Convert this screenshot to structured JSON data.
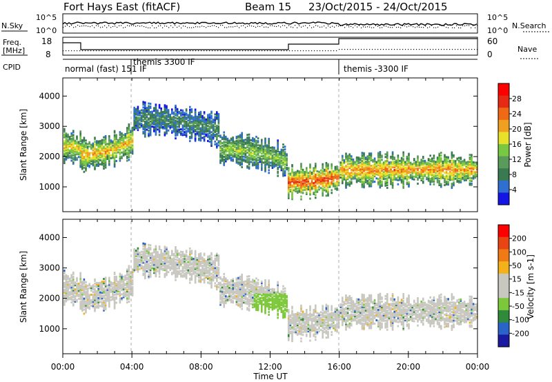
{
  "header": {
    "station": "Fort Hays East (fitACF)",
    "beam": "Beam 15",
    "date_range": "23/Oct/2015 - 24/Oct/2015"
  },
  "status_panels": {
    "nsky_label": "N.Sky",
    "nsky_ticks": [
      "10^5",
      "10^0"
    ],
    "nsearch_label": "N.Search",
    "nsearch_ticks": [
      "10^5",
      "10^0"
    ],
    "freq_label_line1": "Freq.",
    "freq_label_line2": "[MHz]",
    "freq_ticks": [
      "18",
      "8"
    ],
    "nave_label": "Nave",
    "nave_ticks": [
      "60",
      "0"
    ],
    "cpid_label": "CPID",
    "cpid_segments": [
      {
        "name": "normal (fast) 151 IF"
      },
      {
        "name": "themis 3300 IF"
      },
      {
        "name": "themis -3300 IF"
      }
    ]
  },
  "colors": {
    "power_scale": [
      "#1515e6",
      "#2e6fd0",
      "#3a7a50",
      "#5a9a5a",
      "#79c842",
      "#e8e02a",
      "#f0a020",
      "#ef6a14",
      "#e62a14",
      "#ff0000"
    ],
    "velocity_scale": [
      "#1a1aa0",
      "#2a64c8",
      "#2f8a3c",
      "#7cc83a",
      "#c8c8c0",
      "#c8c8c0",
      "#f3b21a",
      "#f07a14",
      "#e84414",
      "#ff0000"
    ]
  },
  "chart_data": [
    {
      "type": "heatmap",
      "title": "",
      "xlabel": "Time UT",
      "ylabel": "Slant Range [km]",
      "x_ticks": [
        "00:00",
        "04:00",
        "08:00",
        "12:00",
        "16:00",
        "20:00",
        "00:00"
      ],
      "x_range_hours": [
        0,
        24
      ],
      "y_ticks": [
        "1000",
        "2000",
        "3000",
        "4000"
      ],
      "y_range_km": [
        180,
        4600
      ],
      "colorbar_label": "Power [dB]",
      "colorbar_ticks": [
        "4",
        "8",
        "12",
        "16",
        "20",
        "24",
        "28"
      ],
      "colorbar_range": [
        0,
        30
      ],
      "backscatter_bands": [
        {
          "hour_start": 0,
          "hour_end": 1,
          "range_center_km": 2400,
          "value": 18
        },
        {
          "hour_start": 1,
          "hour_end": 4,
          "range_center_km": 2100,
          "value": 20
        },
        {
          "hour_start": 4,
          "hour_end": 9,
          "range_center_km": 3300,
          "value": 8
        },
        {
          "hour_start": 9,
          "hour_end": 13,
          "range_center_km": 2300,
          "value": 14
        },
        {
          "hour_start": 13,
          "hour_end": 16,
          "range_center_km": 1200,
          "value": 26
        },
        {
          "hour_start": 16,
          "hour_end": 24,
          "range_center_km": 1600,
          "value": 22
        }
      ]
    },
    {
      "type": "heatmap",
      "title": "",
      "xlabel": "Time UT",
      "ylabel": "Slant Range [km]",
      "x_ticks": [
        "00:00",
        "04:00",
        "08:00",
        "12:00",
        "16:00",
        "20:00",
        "00:00"
      ],
      "x_range_hours": [
        0,
        24
      ],
      "y_ticks": [
        "1000",
        "2000",
        "3000",
        "4000"
      ],
      "y_range_km": [
        180,
        4600
      ],
      "colorbar_label": "Velocity [m s-1]",
      "colorbar_ticks": [
        "200",
        "100",
        "50",
        "15",
        "-15",
        "-50",
        "-100",
        "-200"
      ],
      "colorbar_range": [
        -250,
        250
      ]
    }
  ]
}
